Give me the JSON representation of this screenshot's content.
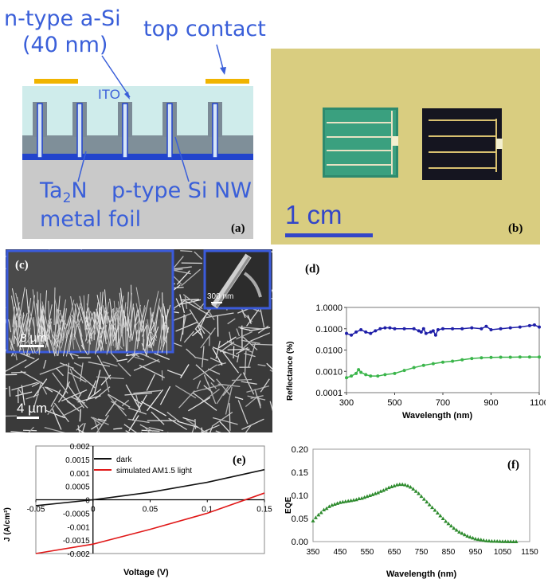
{
  "panel_a": {
    "tag": "(a)",
    "label_ntype_line1": "n-type a-Si",
    "label_ntype_line2": "(40 nm)",
    "label_top_contact": "top contact",
    "label_ito": "ITO",
    "label_ta2n_main": "Ta",
    "label_ta2n_sub": "2",
    "label_ta2n_end": "N",
    "label_ptype": "p-type Si NW",
    "label_metal_foil": "metal foil",
    "colors": {
      "contact": "#f0b400",
      "ito": "#cfeceb",
      "wire": "#8a9aa8",
      "blue": "#2244cc",
      "foil": "#c8c8c8",
      "label": "#3a5fd9"
    }
  },
  "panel_b": {
    "tag": "(b)",
    "scale_label": "1 cm",
    "colors": {
      "background": "#d8cc7e",
      "scale_bar": "#3346c8"
    }
  },
  "panel_c": {
    "tag": "(c)",
    "scale_main": "4 µm",
    "scale_inset_left": "8 µm",
    "scale_inset_right": "300 nm"
  },
  "panel_d": {
    "tag": "(d)",
    "chart_data": {
      "type": "line",
      "ylabel": "Reflectance (%)",
      "xlabel": "Wavelength (nm)",
      "y_scale": "log",
      "ylim": [
        0.0001,
        1.0
      ],
      "xlim": [
        300,
        1100
      ],
      "x_ticks": [
        "300",
        "500",
        "700",
        "900",
        "1100"
      ],
      "y_ticks": [
        "1.0000",
        "0.1000",
        "0.0100",
        "0.0010",
        "0.0001"
      ],
      "series": [
        {
          "color": "#1f1fa8",
          "x": [
            300,
            320,
            340,
            360,
            380,
            400,
            420,
            440,
            460,
            480,
            500,
            540,
            580,
            600,
            610,
            620,
            630,
            650,
            660,
            670,
            680,
            700,
            740,
            780,
            820,
            860,
            880,
            900,
            940,
            980,
            1020,
            1060,
            1080,
            1100
          ],
          "values": [
            0.06,
            0.05,
            0.07,
            0.09,
            0.07,
            0.06,
            0.08,
            0.1,
            0.11,
            0.11,
            0.1,
            0.1,
            0.1,
            0.08,
            0.07,
            0.1,
            0.06,
            0.07,
            0.08,
            0.05,
            0.09,
            0.1,
            0.1,
            0.1,
            0.11,
            0.1,
            0.13,
            0.09,
            0.1,
            0.11,
            0.12,
            0.14,
            0.15,
            0.12
          ]
        },
        {
          "color": "#3ab54a",
          "x": [
            300,
            320,
            340,
            350,
            360,
            380,
            400,
            430,
            460,
            500,
            540,
            580,
            620,
            660,
            700,
            740,
            780,
            820,
            860,
            900,
            940,
            980,
            1020,
            1060,
            1100
          ],
          "values": [
            0.0005,
            0.0006,
            0.0008,
            0.0012,
            0.0009,
            0.0007,
            0.0006,
            0.0006,
            0.0007,
            0.0008,
            0.0011,
            0.0015,
            0.0019,
            0.0023,
            0.0027,
            0.003,
            0.0035,
            0.004,
            0.0043,
            0.0045,
            0.0046,
            0.0046,
            0.0047,
            0.0047,
            0.0047
          ]
        }
      ]
    }
  },
  "panel_e": {
    "tag": "(e)",
    "chart_data": {
      "type": "line",
      "ylabel": "J (A/cm²)",
      "xlabel": "Voltage (V)",
      "xlim": [
        -0.05,
        0.15
      ],
      "ylim": [
        -0.002,
        0.002
      ],
      "x_ticks": [
        "-0.05",
        "0",
        "0.05",
        "0.1",
        "0.15"
      ],
      "y_ticks": [
        "0.002",
        "0.0015",
        "0.001",
        "0.0005",
        "0",
        "-0.0005",
        "-0.001",
        "-0.0015",
        "-0.002"
      ],
      "series": [
        {
          "name": "dark",
          "color": "#111111",
          "x": [
            -0.05,
            0,
            0.05,
            0.1,
            0.15
          ],
          "values": [
            -0.00022,
            0.0,
            0.00028,
            0.00065,
            0.00112
          ]
        },
        {
          "name": "simulated AM1.5 light",
          "color": "#e01818",
          "x": [
            -0.05,
            0,
            0.05,
            0.1,
            0.15
          ],
          "values": [
            -0.00205,
            -0.00165,
            -0.0011,
            -0.0005,
            0.00025
          ]
        }
      ]
    }
  },
  "panel_f": {
    "tag": "(f)",
    "chart_data": {
      "type": "scatter",
      "ylabel": "EQE",
      "xlabel": "Wavelength (nm)",
      "xlim": [
        350,
        1150
      ],
      "ylim": [
        0,
        0.2
      ],
      "x_ticks": [
        "350",
        "450",
        "550",
        "650",
        "750",
        "850",
        "950",
        "1050",
        "1150"
      ],
      "y_ticks": [
        "0.20",
        "0.15",
        "0.10",
        "0.05",
        "0.00"
      ],
      "series": [
        {
          "color": "#2e8b2e",
          "x": [
            350,
            360,
            370,
            380,
            390,
            400,
            410,
            420,
            430,
            440,
            450,
            460,
            470,
            480,
            490,
            500,
            510,
            520,
            530,
            540,
            550,
            560,
            570,
            580,
            590,
            600,
            610,
            620,
            630,
            640,
            650,
            660,
            670,
            680,
            690,
            700,
            710,
            720,
            730,
            740,
            750,
            760,
            770,
            780,
            790,
            800,
            810,
            820,
            830,
            840,
            850,
            860,
            870,
            880,
            890,
            900,
            910,
            920,
            930,
            940,
            950,
            960,
            970,
            980,
            990,
            1000,
            1010,
            1020,
            1030,
            1040,
            1050,
            1060,
            1070,
            1080,
            1090,
            1100
          ],
          "values": [
            0.045,
            0.052,
            0.058,
            0.063,
            0.069,
            0.072,
            0.076,
            0.079,
            0.081,
            0.083,
            0.085,
            0.086,
            0.087,
            0.088,
            0.089,
            0.09,
            0.091,
            0.093,
            0.094,
            0.096,
            0.098,
            0.1,
            0.102,
            0.104,
            0.106,
            0.109,
            0.111,
            0.114,
            0.117,
            0.119,
            0.121,
            0.123,
            0.124,
            0.124,
            0.123,
            0.121,
            0.118,
            0.114,
            0.109,
            0.104,
            0.098,
            0.092,
            0.086,
            0.08,
            0.074,
            0.068,
            0.062,
            0.056,
            0.05,
            0.044,
            0.039,
            0.034,
            0.029,
            0.025,
            0.021,
            0.018,
            0.015,
            0.012,
            0.01,
            0.008,
            0.006,
            0.005,
            0.004,
            0.003,
            0.002,
            0.0015,
            0.001,
            0.001,
            0.0008,
            0.0006,
            0.0005,
            0.0004,
            0.0003,
            0.0002,
            0.0001,
            0.0
          ]
        }
      ]
    }
  }
}
